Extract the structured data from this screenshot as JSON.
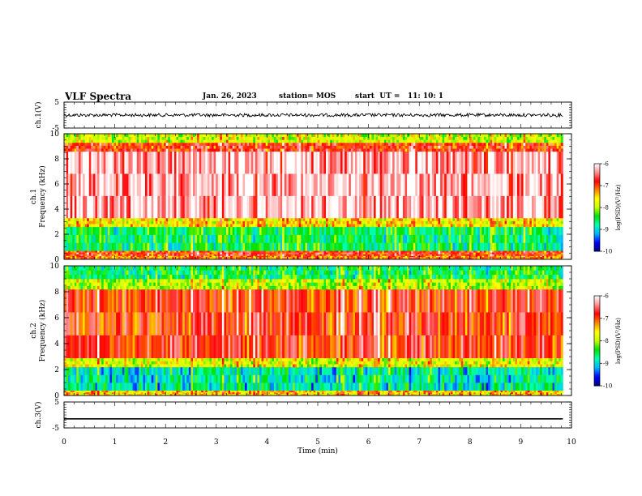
{
  "header": {
    "title": "VLF Spectra",
    "date": "Jan. 26, 2023",
    "station": "station= MOS",
    "start": "start  UT =   11: 10: 1"
  },
  "chart_data": [
    {
      "type": "line",
      "panel": "ch1",
      "ylabel": "ch.1(V)",
      "ylim": [
        -5,
        5
      ],
      "yticks": [
        "5",
        "-5"
      ],
      "series": [
        {
          "values_note_free": true,
          "x": [
            0,
            9.83
          ],
          "y": [
            0,
            0
          ]
        }
      ],
      "color": "#000000"
    },
    {
      "type": "heatmap",
      "panel": "ch1-spectrogram",
      "ylabel": "ch.1\nFrequency (kHz)",
      "ylim": [
        0,
        10
      ],
      "yticks": [
        "0",
        "2",
        "4",
        "6",
        "8",
        "10"
      ],
      "xlim": [
        0,
        10
      ],
      "data_end_min": 9.83,
      "bands": [
        {
          "f": [
            0,
            0.3
          ],
          "level": -7.2
        },
        {
          "f": [
            0.3,
            0.7
          ],
          "level": -6.9
        },
        {
          "f": [
            0.7,
            2.6
          ],
          "level": -8.6
        },
        {
          "f": [
            2.6,
            3.3
          ],
          "level": -7.6
        },
        {
          "f": [
            3.3,
            8.6
          ],
          "level": -6.3
        },
        {
          "f": [
            8.6,
            9.3
          ],
          "level": -6.9
        },
        {
          "f": [
            9.3,
            10
          ],
          "level": -7.9
        }
      ],
      "colorbar": {
        "label": "log(PSD)(V²/Hz)",
        "range": [
          -10,
          -6
        ],
        "ticks": [
          "-6",
          "-7",
          "-8",
          "-9",
          "-10"
        ]
      }
    },
    {
      "type": "heatmap",
      "panel": "ch2-spectrogram",
      "ylabel": "ch.2\nFrequency (kHz)",
      "ylim": [
        0,
        10
      ],
      "yticks": [
        "0",
        "2",
        "4",
        "6",
        "8",
        "10"
      ],
      "xlim": [
        0,
        10
      ],
      "data_end_min": 9.83,
      "bands": [
        {
          "f": [
            0,
            0.4
          ],
          "level": -7.5
        },
        {
          "f": [
            0.4,
            2.2
          ],
          "level": -8.9
        },
        {
          "f": [
            2.2,
            2.9
          ],
          "level": -7.8
        },
        {
          "f": [
            2.9,
            8.2
          ],
          "level": -6.9
        },
        {
          "f": [
            8.2,
            9.0
          ],
          "level": -8.0
        },
        {
          "f": [
            9.0,
            10
          ],
          "level": -8.6
        }
      ],
      "colorbar": {
        "label": "log(PSD)(V²/Hz)",
        "range": [
          -10,
          -6
        ],
        "ticks": [
          "-6",
          "-7",
          "-8",
          "-9",
          "-10"
        ]
      }
    },
    {
      "type": "line",
      "panel": "ch3",
      "ylabel": "ch.3(V)",
      "ylim": [
        -5,
        5
      ],
      "yticks": [
        "5",
        "-5"
      ],
      "series": [
        {
          "x": [
            0,
            9.83
          ],
          "y": [
            -1.5,
            -1.5
          ]
        }
      ],
      "color": "#000000"
    }
  ],
  "xaxis": {
    "label": "Time (min)",
    "range": [
      0,
      10
    ],
    "ticks": [
      "0",
      "1",
      "2",
      "3",
      "4",
      "5",
      "6",
      "7",
      "8",
      "9",
      "10"
    ]
  },
  "colors": {
    "scale": [
      "#000080",
      "#0000ff",
      "#00b4ff",
      "#00ffb4",
      "#00e000",
      "#c8ff00",
      "#ffff00",
      "#ff8000",
      "#ff0000",
      "#ff9090",
      "#ffffff"
    ]
  }
}
